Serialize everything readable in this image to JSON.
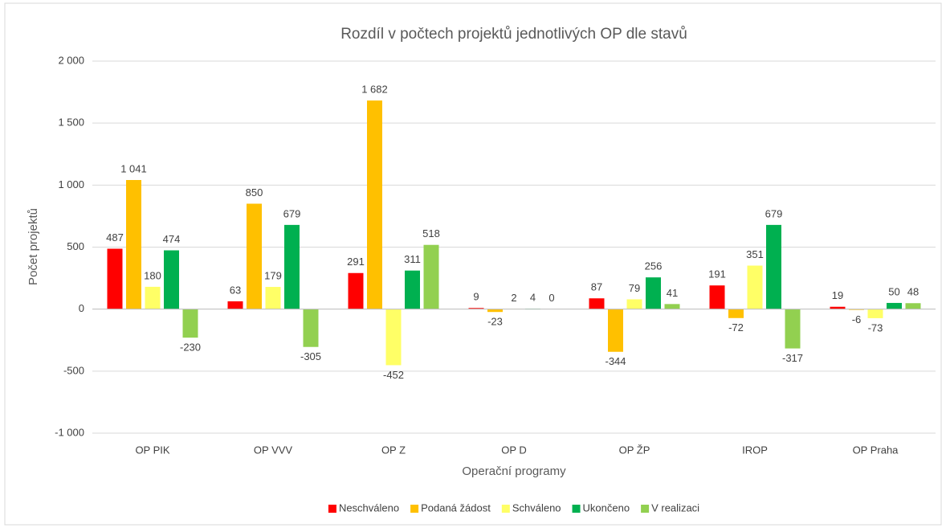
{
  "chart_data": {
    "type": "bar",
    "title": "Rozdíl v počtech projektů jednotlivých OP dle stavů",
    "x_label": "Operační programy",
    "y_label": "Počet projektů",
    "categories": [
      "OP PIK",
      "OP VVV",
      "OP Z",
      "OP D",
      "OP ŽP",
      "IROP",
      "OP Praha"
    ],
    "series": [
      {
        "name": "Neschváleno",
        "color": "#ff0000",
        "values": [
          487,
          63,
          291,
          9,
          87,
          191,
          19
        ],
        "value_labels": [
          "487",
          "63",
          "291",
          "9",
          "87",
          "191",
          "19"
        ]
      },
      {
        "name": "Podaná žádost",
        "color": "#ffc000",
        "values": [
          1041,
          850,
          1682,
          -23,
          -344,
          -72,
          -6
        ],
        "value_labels": [
          "1 041",
          "850",
          "1 682",
          "-23",
          "-344",
          "-72",
          "-6"
        ]
      },
      {
        "name": "Schváleno",
        "color": "#ffff66",
        "values": [
          180,
          179,
          -452,
          2,
          79,
          351,
          -73
        ],
        "value_labels": [
          "180",
          "179",
          "-452",
          "2",
          "79",
          "351",
          "-73"
        ]
      },
      {
        "name": "Ukončeno",
        "color": "#00b050",
        "values": [
          474,
          679,
          311,
          4,
          256,
          679,
          50
        ],
        "value_labels": [
          "474",
          "679",
          "311",
          "4",
          "256",
          "679",
          "50"
        ]
      },
      {
        "name": "V realizaci",
        "color": "#92d050",
        "values": [
          -230,
          -305,
          518,
          0,
          41,
          -317,
          48
        ],
        "value_labels": [
          "-230",
          "-305",
          "518",
          "0",
          "41",
          "-317",
          "48"
        ]
      }
    ],
    "ylim": [
      -1000,
      2000
    ],
    "yticks": [
      {
        "value": -1000,
        "label": "-1 000"
      },
      -500,
      0,
      500,
      {
        "value": 1000,
        "label": "1 000"
      },
      {
        "value": 1500,
        "label": "1 500"
      },
      {
        "value": 2000,
        "label": "2 000"
      }
    ],
    "grid": true,
    "legend": "bottom"
  }
}
